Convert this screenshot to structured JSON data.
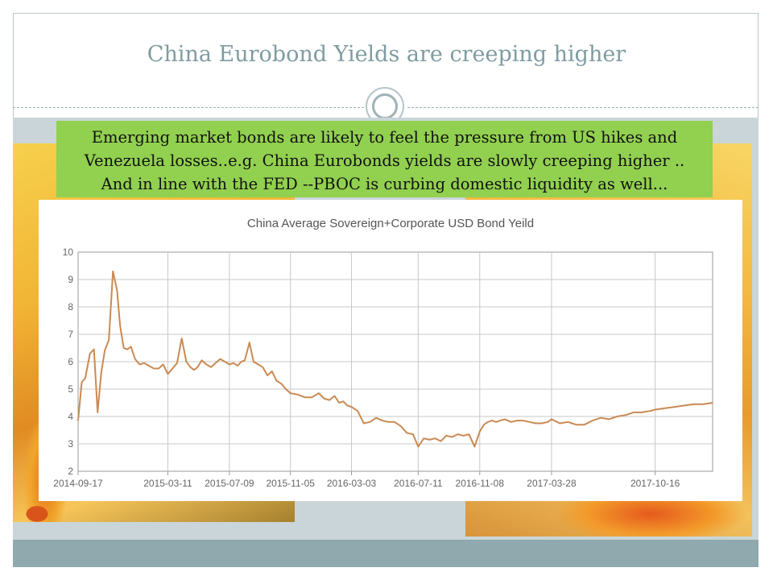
{
  "slide": {
    "title": "China Eurobond Yields are creeping higher",
    "callout_lines": [
      "Emerging market bonds are likely to feel the pressure from US hikes and",
      "Venezuela losses..e.g. China Eurobonds yields are slowly creeping higher ..",
      "And in line with the FED --PBOC is curbing domestic liquidity as well..."
    ],
    "colors": {
      "callout_bg": "#92d050",
      "title": "#7f9ca1",
      "band": "#c9d5d8",
      "footer": "#8fa9ae"
    }
  },
  "chart_data": {
    "type": "line",
    "title": "China Average Sovereign+Corporate  USD Bond Yeild",
    "xlabel": "",
    "ylabel": "",
    "ylim": [
      2,
      10
    ],
    "yticks": [
      2,
      3,
      4,
      5,
      6,
      7,
      8,
      9,
      10
    ],
    "xlim": [
      "2014-09-17",
      "2018-02-05"
    ],
    "xticks": [
      "2014-09-17",
      "2015-03-11",
      "2015-07-09",
      "2015-11-05",
      "2016-03-03",
      "2016-07-11",
      "2016-11-08",
      "2017-03-28",
      "2017-10-16"
    ],
    "grid": true,
    "line_color": "#c98a53",
    "series": [
      {
        "x": [
          "2014-09-17",
          "2014-09-24",
          "2014-10-01",
          "2014-10-10",
          "2014-10-18",
          "2014-10-25",
          "2014-11-01",
          "2014-11-08",
          "2014-11-16",
          "2014-11-24",
          "2014-12-02",
          "2014-12-08",
          "2014-12-15",
          "2014-12-22",
          "2014-12-29",
          "2015-01-06",
          "2015-01-15",
          "2015-01-24",
          "2015-02-02",
          "2015-02-12",
          "2015-02-21",
          "2015-03-02",
          "2015-03-11",
          "2015-03-20",
          "2015-03-29",
          "2015-04-07",
          "2015-04-16",
          "2015-04-24",
          "2015-05-01",
          "2015-05-08",
          "2015-05-16",
          "2015-05-25",
          "2015-06-03",
          "2015-06-12",
          "2015-06-21",
          "2015-06-30",
          "2015-07-09",
          "2015-07-17",
          "2015-07-25",
          "2015-08-01",
          "2015-08-08",
          "2015-08-17",
          "2015-08-25",
          "2015-09-03",
          "2015-09-12",
          "2015-09-21",
          "2015-09-30",
          "2015-10-09",
          "2015-10-18",
          "2015-10-27",
          "2015-11-05",
          "2015-11-19",
          "2015-12-03",
          "2015-12-17",
          "2015-12-30",
          "2016-01-10",
          "2016-01-20",
          "2016-01-30",
          "2016-02-08",
          "2016-02-16",
          "2016-02-24",
          "2016-03-03",
          "2016-03-15",
          "2016-03-27",
          "2016-04-08",
          "2016-04-20",
          "2016-05-02",
          "2016-05-14",
          "2016-05-26",
          "2016-06-07",
          "2016-06-19",
          "2016-07-01",
          "2016-07-11",
          "2016-07-22",
          "2016-08-02",
          "2016-08-13",
          "2016-08-24",
          "2016-09-04",
          "2016-09-15",
          "2016-09-26",
          "2016-10-07",
          "2016-10-18",
          "2016-10-29",
          "2016-11-08",
          "2016-11-16",
          "2016-11-24",
          "2016-12-02",
          "2016-12-10",
          "2016-12-18",
          "2016-12-27",
          "2017-01-08",
          "2017-01-20",
          "2017-02-01",
          "2017-02-13",
          "2017-02-25",
          "2017-03-09",
          "2017-03-21",
          "2017-03-28",
          "2017-04-13",
          "2017-04-29",
          "2017-05-15",
          "2017-05-31",
          "2017-06-16",
          "2017-07-02",
          "2017-07-18",
          "2017-08-03",
          "2017-08-19",
          "2017-09-04",
          "2017-09-20",
          "2017-10-06",
          "2017-10-16",
          "2017-11-04",
          "2017-11-23",
          "2017-12-12",
          "2017-12-31",
          "2018-01-18",
          "2018-02-05"
        ],
        "values": [
          3.85,
          5.25,
          5.4,
          6.3,
          6.45,
          4.15,
          5.6,
          6.4,
          6.8,
          9.3,
          8.6,
          7.3,
          6.5,
          6.45,
          6.55,
          6.1,
          5.9,
          5.95,
          5.85,
          5.75,
          5.75,
          5.9,
          5.55,
          5.75,
          5.95,
          6.85,
          6.0,
          5.8,
          5.7,
          5.8,
          6.05,
          5.9,
          5.8,
          5.95,
          6.1,
          6.0,
          5.9,
          5.95,
          5.85,
          6.0,
          6.05,
          6.7,
          6.0,
          5.9,
          5.8,
          5.5,
          5.65,
          5.3,
          5.2,
          5.0,
          4.85,
          4.8,
          4.7,
          4.7,
          4.85,
          4.65,
          4.6,
          4.75,
          4.5,
          4.55,
          4.4,
          4.35,
          4.2,
          3.75,
          3.8,
          3.95,
          3.85,
          3.8,
          3.8,
          3.65,
          3.4,
          3.35,
          2.9,
          3.2,
          3.15,
          3.2,
          3.1,
          3.3,
          3.25,
          3.35,
          3.3,
          3.35,
          2.9,
          3.45,
          3.7,
          3.8,
          3.85,
          3.8,
          3.85,
          3.9,
          3.8,
          3.85,
          3.85,
          3.8,
          3.75,
          3.75,
          3.8,
          3.9,
          3.75,
          3.8,
          3.7,
          3.7,
          3.85,
          3.95,
          3.9,
          4.0,
          4.05,
          4.15,
          4.15,
          4.2,
          4.25,
          4.3,
          4.35,
          4.4,
          4.45,
          4.45,
          4.5
        ]
      }
    ]
  }
}
